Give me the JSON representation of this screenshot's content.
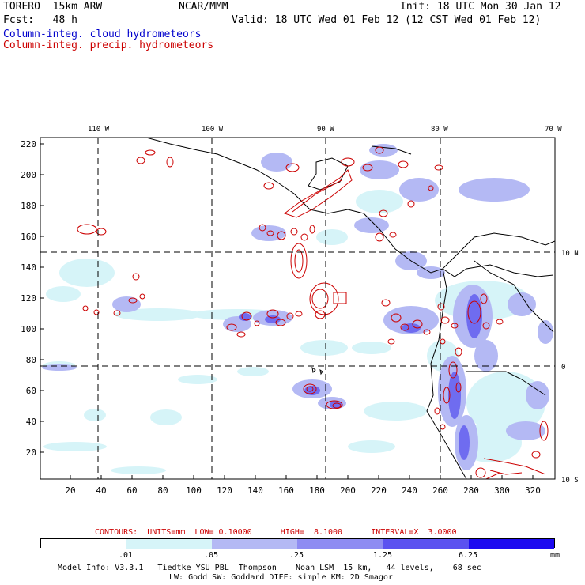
{
  "header": {
    "title_left": "TORERO  15km ARW",
    "title_center": "NCAR/MMM",
    "init": "Init: 18 UTC Mon 30 Jan 12",
    "fcst_label": "Fcst:   48 h",
    "valid": "Valid: 18 UTC Wed 01 Feb 12 (12 CST Wed 01 Feb 12)",
    "legend_blue": "Column-integ. cloud hydrometeors",
    "legend_red": "Column-integ. precip. hydrometeors"
  },
  "map": {
    "lon_labels": [
      "110 W",
      "100 W",
      "90 W",
      "80 W",
      "70 W"
    ],
    "lat_labels": [
      "10 N",
      "0",
      "10 S"
    ],
    "y_ticks": [
      "220",
      "200",
      "180",
      "160",
      "140",
      "120",
      "100",
      "80",
      "60",
      "40",
      "20"
    ],
    "x_ticks": [
      "20",
      "40",
      "60",
      "80",
      "100",
      "120",
      "140",
      "160",
      "180",
      "200",
      "220",
      "240",
      "260",
      "280",
      "300",
      "320"
    ],
    "colors": {
      "land_border": "#000000",
      "precip_contour": "#cc0000",
      "shade1": "#d6f4f8",
      "shade2": "#b4b9f4",
      "shade3": "#6f6cf0",
      "shade4": "#2b22ee"
    }
  },
  "contours_line": "CONTOURS:  UNITS=mm  LOW= 0.10000      HIGH=  8.1000      INTERVAL=X  3.0000",
  "colorbar": {
    "labels": [
      ".01",
      ".05",
      ".25",
      "1.25",
      "6.25"
    ],
    "units": "mm",
    "colors": [
      "#ffffff",
      "#d6f4f8",
      "#b4b9f4",
      "#8e8cf2",
      "#5b52f0",
      "#1c0af0"
    ]
  },
  "footer": {
    "line1": "Model Info: V3.3.1   Tiedtke YSU PBL  Thompson    Noah LSM  15 km,   44 levels,    68 sec",
    "line2": "LW: Godd SW: Goddard DIFF: simple KM: 2D Smagor"
  }
}
